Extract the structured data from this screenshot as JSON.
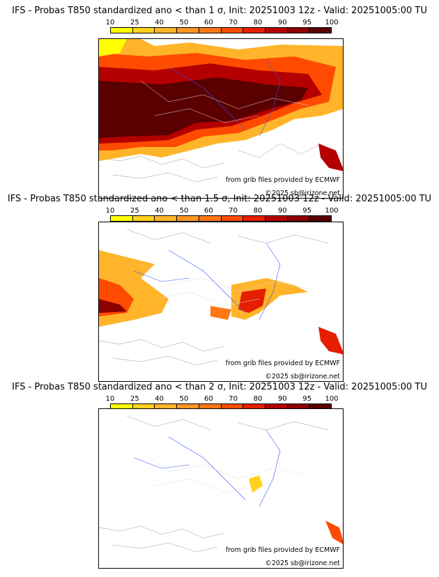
{
  "panels": [
    {
      "title": "IFS - Probas T850  standardized ano < than 1 σ, Init: 20251003 12z - Valid: 20251005:00 TU"
    },
    {
      "title": "IFS - Probas T850  standardized ano < than 1.5 σ, Init: 20251003 12z - Valid: 20251005:00 TU"
    },
    {
      "title": "IFS - Probas T850  standardized ano < than 2 σ, Init: 20251003 12z - Valid: 20251005:00 TU"
    }
  ],
  "colorbar": {
    "ticks": [
      "10",
      "25",
      "40",
      "50",
      "60",
      "70",
      "80",
      "90",
      "95",
      "100"
    ],
    "colors": [
      "#ffff00",
      "#ffd21e",
      "#ffb42a",
      "#ff9624",
      "#ff7814",
      "#ff4b00",
      "#e61e00",
      "#b40000",
      "#8c0000",
      "#5a0000"
    ]
  },
  "credits": {
    "source": "from grib files provided by ECMWF",
    "copyright": "©2025 sb@irizone.net"
  }
}
